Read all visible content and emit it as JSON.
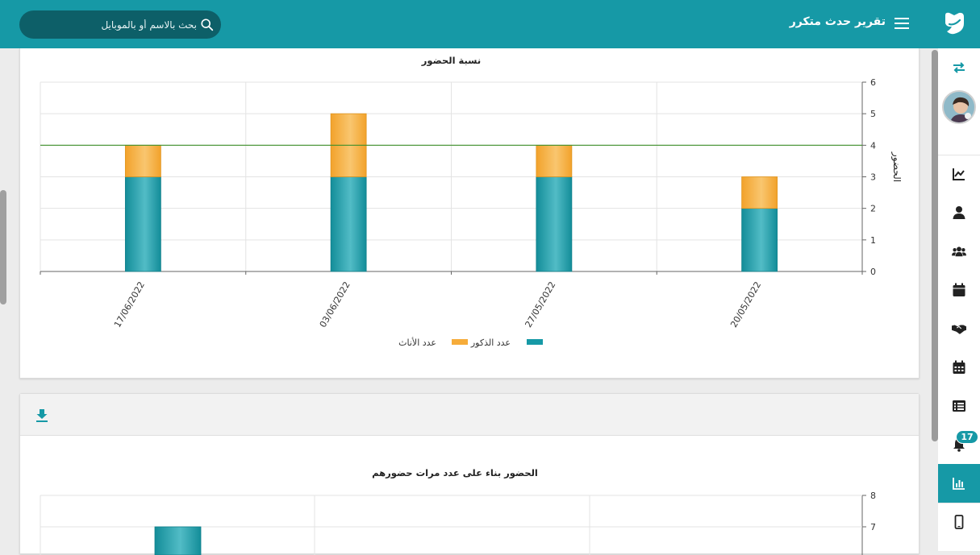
{
  "header": {
    "page_title": "تقرير حدث متكرر",
    "search_placeholder": "بحث بالاسم أو بالموبايل"
  },
  "sidebar": {
    "items": [
      {
        "name": "switch-icon"
      },
      {
        "name": "chart-line-icon"
      },
      {
        "name": "user-icon"
      },
      {
        "name": "users-icon"
      },
      {
        "name": "calendar-icon"
      },
      {
        "name": "handshake-icon"
      },
      {
        "name": "calendar-grid-icon"
      },
      {
        "name": "list-icon"
      },
      {
        "name": "bell-icon"
      },
      {
        "name": "bar-chart-icon"
      },
      {
        "name": "mobile-icon"
      }
    ],
    "notification_count": "17",
    "active_item": "bar-chart-icon"
  },
  "colors": {
    "primary": "#1699a6",
    "female": "#f6ac3a",
    "male": "#1699a6",
    "average_line": "#3f8f2a"
  },
  "chart_data": [
    {
      "type": "bar",
      "stacked": true,
      "title": "نسبة الحضور",
      "ylabel": "الحضور",
      "ylim": [
        0,
        6
      ],
      "yticks": [
        "0",
        "1",
        "2",
        "3",
        "4",
        "5",
        "6"
      ],
      "categories": [
        "17/06/2022",
        "03/06/2022",
        "27/05/2022",
        "20/05/2022"
      ],
      "series": [
        {
          "name": "عدد الذكور",
          "values": [
            3,
            3,
            3,
            2
          ]
        },
        {
          "name": "عدد الأناث",
          "values": [
            1,
            2,
            1,
            1
          ]
        }
      ],
      "reference_line": 4,
      "legend": "bottom",
      "grid": true
    },
    {
      "type": "bar",
      "title": "الحضور بناء على عدد مرات حضورهم",
      "ylim": [
        0,
        8
      ],
      "yticks_visible": [
        "8",
        "7"
      ],
      "series": [
        {
          "values": [
            7
          ]
        }
      ],
      "grid": true
    }
  ]
}
